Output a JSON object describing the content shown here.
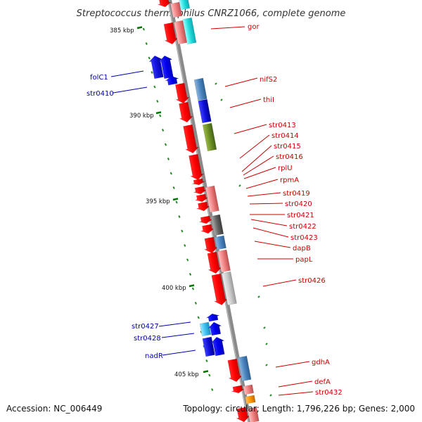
{
  "title": "Streptococcus thermophilus CNRZ1066, complete genome",
  "footer": {
    "accession": "Accession: NC_006449",
    "topology": "Topology: circular; Length: 1,796,226 bp; Genes: 2,000"
  },
  "ticks": [
    {
      "label": "385 kbp"
    },
    {
      "label": "390 kbp"
    },
    {
      "label": "395 kbp"
    },
    {
      "label": "400 kbp"
    },
    {
      "label": "405 kbp"
    }
  ],
  "labels_right": [
    "gor",
    "nifS2",
    "thiI",
    "str0413",
    "str0414",
    "str0415",
    "str0416",
    "rplU",
    "rpmA",
    "str0419",
    "str0420",
    "str0421",
    "str0422",
    "str0423",
    "dapB",
    "papL",
    "str0426",
    "gdhA",
    "defA",
    "str0432"
  ],
  "labels_left": [
    "folC1",
    "str0410",
    "str0427",
    "str0428",
    "nadR"
  ],
  "colors": {
    "forward": "#ff0000",
    "reverse": "#0000ee",
    "axis": "#888888",
    "tick": "#008800",
    "label_right": "#cc0000",
    "label_left": "#0000aa"
  }
}
